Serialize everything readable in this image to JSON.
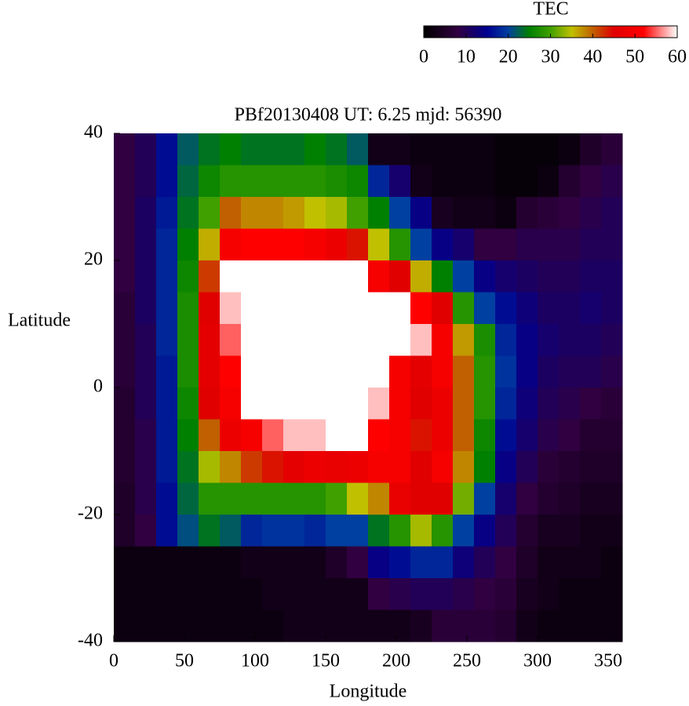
{
  "chart_data": {
    "type": "heatmap",
    "title": "PBf20130408  UT: 6.25  mjd: 56390",
    "xlabel": "Longitude",
    "ylabel": "Latitude",
    "xlim": [
      0,
      360
    ],
    "ylim": [
      -40,
      40
    ],
    "xticks": [
      0,
      50,
      100,
      150,
      200,
      250,
      300,
      350
    ],
    "yticks": [
      -40,
      -20,
      0,
      20,
      40
    ],
    "colorbar_label": "TEC",
    "clim": [
      0,
      60
    ],
    "cticks": [
      0,
      10,
      20,
      30,
      40,
      50,
      60
    ],
    "colorscale": [
      [
        0,
        "#000000"
      ],
      [
        8,
        "#300040"
      ],
      [
        15,
        "#000090"
      ],
      [
        20,
        "#0040a0"
      ],
      [
        25,
        "#008000"
      ],
      [
        30,
        "#40a000"
      ],
      [
        35,
        "#c0c000"
      ],
      [
        40,
        "#c06000"
      ],
      [
        45,
        "#e00000"
      ],
      [
        52,
        "#ff0000"
      ],
      [
        60,
        "#ffffff"
      ]
    ],
    "x": [
      7.5,
      22.5,
      37.5,
      52.5,
      67.5,
      82.5,
      97.5,
      112.5,
      127.5,
      142.5,
      157.5,
      172.5,
      187.5,
      202.5,
      217.5,
      232.5,
      247.5,
      262.5,
      277.5,
      292.5,
      307.5,
      322.5,
      337.5,
      352.5
    ],
    "y": [
      37.5,
      32.5,
      27.5,
      22.5,
      17.5,
      12.5,
      7.5,
      2.5,
      -2.5,
      -7.5,
      -12.5,
      -17.5,
      -22.5,
      -27.5,
      -32.5,
      -37.5
    ],
    "z": [
      [
        8,
        8,
        8,
        8,
        8,
        7,
        7,
        7,
        6,
        6,
        6,
        5,
        5,
        2,
        2,
        2
      ],
      [
        10,
        10,
        11,
        11,
        11,
        11,
        10,
        10,
        10,
        9,
        9,
        9,
        8,
        2,
        2,
        2
      ],
      [
        16,
        16,
        17,
        18,
        18,
        18,
        18,
        17,
        17,
        17,
        17,
        16,
        16,
        2,
        2,
        2
      ],
      [
        22,
        23,
        24,
        25,
        26,
        27,
        27,
        27,
        26,
        25,
        24,
        23,
        21,
        2,
        2,
        2
      ],
      [
        24,
        26,
        30,
        36,
        42,
        45,
        46,
        46,
        45,
        40,
        34,
        28,
        24,
        2,
        2,
        2
      ],
      [
        25,
        28,
        40,
        50,
        60,
        58,
        55,
        52,
        50,
        48,
        38,
        28,
        22,
        2,
        2,
        2
      ],
      [
        24,
        28,
        38,
        52,
        60,
        60,
        60,
        60,
        60,
        50,
        42,
        28,
        18,
        3,
        2,
        2
      ],
      [
        24,
        28,
        38,
        52,
        60,
        60,
        60,
        60,
        60,
        55,
        44,
        28,
        19,
        3,
        3,
        2
      ],
      [
        24,
        28,
        37,
        52,
        60,
        60,
        60,
        60,
        60,
        58,
        46,
        28,
        19,
        3,
        3,
        3
      ],
      [
        25,
        28,
        35,
        50,
        60,
        60,
        60,
        60,
        60,
        58,
        48,
        28,
        18,
        3,
        3,
        3
      ],
      [
        24,
        27,
        34,
        48,
        60,
        60,
        60,
        60,
        60,
        60,
        47,
        30,
        20,
        5,
        3,
        3
      ],
      [
        22,
        26,
        30,
        44,
        60,
        60,
        60,
        60,
        60,
        60,
        48,
        35,
        20,
        8,
        3,
        3
      ],
      [
        3,
        18,
        25,
        35,
        50,
        60,
        60,
        60,
        58,
        52,
        50,
        38,
        24,
        14,
        8,
        3
      ],
      [
        3,
        12,
        20,
        28,
        45,
        60,
        60,
        50,
        50,
        50,
        50,
        47,
        28,
        16,
        9,
        3
      ],
      [
        2,
        3,
        14,
        20,
        36,
        52,
        58,
        46,
        45,
        44,
        45,
        45,
        34,
        18,
        10,
        4
      ],
      [
        2,
        2,
        4,
        14,
        25,
        45,
        50,
        50,
        48,
        48,
        50,
        45,
        28,
        18,
        10,
        7
      ],
      [
        2,
        2,
        3,
        12,
        20,
        28,
        37,
        40,
        40,
        40,
        38,
        32,
        20,
        13,
        9,
        7
      ],
      [
        2,
        2,
        3,
        8,
        14,
        20,
        27,
        28,
        28,
        26,
        25,
        20,
        14,
        10,
        8,
        7
      ],
      [
        1,
        1,
        2,
        8,
        12,
        16,
        18,
        19,
        18,
        16,
        14,
        12,
        10,
        8,
        7,
        6
      ],
      [
        1,
        1,
        6,
        9,
        11,
        13,
        14,
        14,
        13,
        12,
        10,
        8,
        6,
        5,
        4,
        3
      ],
      [
        1,
        2,
        7,
        9,
        10,
        11,
        12,
        11,
        10,
        9,
        7,
        6,
        4,
        3,
        3,
        2
      ],
      [
        2,
        6,
        8,
        9,
        10,
        11,
        11,
        10,
        9,
        8,
        6,
        5,
        4,
        3,
        2,
        2
      ],
      [
        5,
        8,
        9,
        10,
        11,
        12,
        11,
        10,
        8,
        6,
        5,
        4,
        3,
        3,
        2,
        2
      ],
      [
        7,
        9,
        10,
        10,
        11,
        11,
        10,
        9,
        7,
        6,
        5,
        4,
        3,
        2,
        2,
        2
      ]
    ]
  }
}
